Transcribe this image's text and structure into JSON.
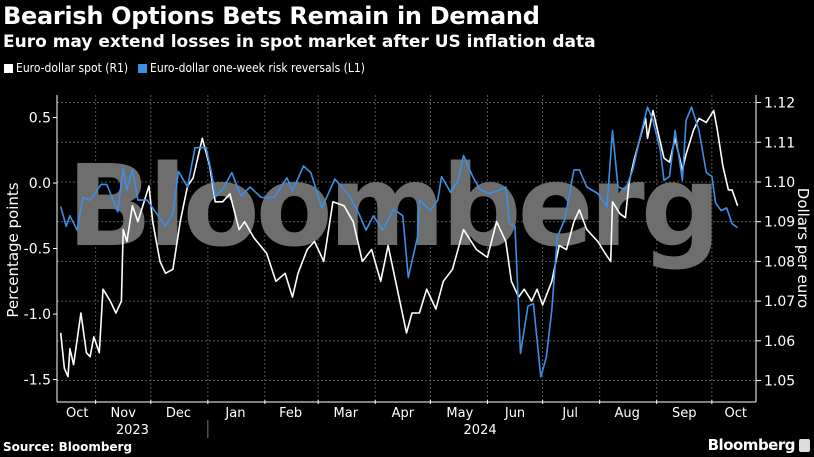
{
  "header": {
    "title": "Bearish Options Bets Remain in Demand",
    "subtitle": "Euro may extend losses in spot market after US inflation data"
  },
  "footer": {
    "source": "Source: Bloomberg",
    "logo": "Bloomberg"
  },
  "watermark": "Bloomberg",
  "colors": {
    "spot": "#ffffff",
    "rr": "#3d8fe6",
    "grid": "#555555",
    "watermark": "#6e6e6e"
  },
  "chart_data": {
    "type": "line",
    "title": "Bearish Options Bets Remain in Demand",
    "x_unit": "days since 2023-10-01",
    "xlim": [
      10,
      390
    ],
    "left_axis": {
      "label": "Percentage points",
      "ylim": [
        -1.656,
        0.672
      ],
      "ticks": [
        0.5,
        0.0,
        -0.5,
        -1.0,
        -1.5
      ],
      "tick_labels": [
        "0.5",
        "0.0",
        "-0.5",
        "-1.0",
        "-1.5"
      ]
    },
    "right_axis": {
      "label": "Dollars per euro",
      "ylim": [
        1.0451,
        1.1219
      ],
      "ticks": [
        1.12,
        1.11,
        1.1,
        1.09,
        1.08,
        1.07,
        1.06,
        1.05
      ],
      "tick_labels": [
        "1.12",
        "1.11",
        "1.10",
        "1.09",
        "1.08",
        "1.07",
        "1.06",
        "1.05"
      ]
    },
    "month_ticks": [
      0,
      31,
      61,
      92,
      123,
      152,
      183,
      213,
      244,
      274,
      305,
      336,
      366
    ],
    "months": [
      {
        "label": "Oct",
        "day": 21
      },
      {
        "label": "Nov",
        "day": 46
      },
      {
        "label": "Dec",
        "day": 76
      },
      {
        "label": "Jan",
        "day": 107
      },
      {
        "label": "Feb",
        "day": 137
      },
      {
        "label": "Mar",
        "day": 167
      },
      {
        "label": "Apr",
        "day": 198
      },
      {
        "label": "May",
        "day": 229
      },
      {
        "label": "Jun",
        "day": 259
      },
      {
        "label": "Jul",
        "day": 289
      },
      {
        "label": "Aug",
        "day": 320
      },
      {
        "label": "Sep",
        "day": 351
      },
      {
        "label": "Oct",
        "day": 379
      }
    ],
    "years": [
      {
        "label": "2023",
        "day": 51
      },
      {
        "label": "2024",
        "day": 240
      }
    ],
    "year_divider_day": 92,
    "grid": true,
    "legend_position": "top-left",
    "series": [
      {
        "name": "Euro-dollar spot (R1)",
        "axis": "right",
        "color": "#ffffff",
        "x": [
          12,
          14,
          16,
          17,
          19,
          23,
          26,
          28,
          30,
          33,
          35,
          39,
          42,
          45,
          46,
          48,
          51,
          54,
          60,
          62,
          66,
          69,
          73,
          77,
          81,
          84,
          89,
          93,
          96,
          100,
          104,
          109,
          112,
          117,
          124,
          129,
          134,
          138,
          141,
          146,
          150,
          155,
          160,
          166,
          171,
          176,
          181,
          186,
          190,
          195,
          200,
          203,
          207,
          211,
          216,
          220,
          225,
          231,
          238,
          244,
          249,
          254,
          257,
          261,
          264,
          268,
          271,
          274,
          279,
          283,
          287,
          291,
          294,
          298,
          304,
          308,
          311,
          312,
          316,
          319,
          321,
          324,
          327,
          330,
          331,
          334,
          337,
          340,
          343,
          346,
          350,
          352,
          356,
          359,
          363,
          367,
          369,
          372,
          375,
          377,
          380
        ],
        "y": [
          1.062,
          1.053,
          1.051,
          1.058,
          1.054,
          1.067,
          1.057,
          1.056,
          1.061,
          1.057,
          1.073,
          1.07,
          1.067,
          1.07,
          1.088,
          1.085,
          1.094,
          1.09,
          1.099,
          1.09,
          1.08,
          1.077,
          1.078,
          1.09,
          1.099,
          1.101,
          1.111,
          1.104,
          1.095,
          1.095,
          1.097,
          1.088,
          1.09,
          1.086,
          1.082,
          1.075,
          1.077,
          1.071,
          1.077,
          1.083,
          1.085,
          1.08,
          1.095,
          1.094,
          1.09,
          1.08,
          1.083,
          1.075,
          1.084,
          1.073,
          1.062,
          1.067,
          1.067,
          1.073,
          1.068,
          1.075,
          1.078,
          1.088,
          1.083,
          1.081,
          1.09,
          1.085,
          1.075,
          1.071,
          1.073,
          1.07,
          1.073,
          1.069,
          1.075,
          1.084,
          1.083,
          1.09,
          1.093,
          1.088,
          1.085,
          1.082,
          1.08,
          1.095,
          1.092,
          1.091,
          1.1,
          1.106,
          1.111,
          1.116,
          1.111,
          1.118,
          1.112,
          1.106,
          1.105,
          1.111,
          1.103,
          1.107,
          1.113,
          1.116,
          1.115,
          1.118,
          1.113,
          1.104,
          1.098,
          1.098,
          1.094
        ]
      },
      {
        "name": "Euro-dollar one-week risk reversals (L1)",
        "axis": "left",
        "color": "#3d8fe6",
        "x": [
          12,
          15,
          17,
          21,
          24,
          28,
          34,
          37,
          40,
          43,
          46,
          48,
          51,
          54,
          59,
          64,
          69,
          73,
          76,
          81,
          85,
          91,
          94,
          96,
          100,
          105,
          110,
          115,
          121,
          128,
          135,
          138,
          144,
          148,
          154,
          161,
          165,
          169,
          174,
          178,
          182,
          187,
          193,
          198,
          201,
          206,
          207,
          213,
          217,
          219,
          224,
          228,
          231,
          236,
          240,
          245,
          251,
          254,
          256,
          259,
          262,
          266,
          269,
          273,
          276,
          279,
          282,
          286,
          291,
          294,
          298,
          304,
          309,
          312,
          315,
          319,
          323,
          327,
          331,
          334,
          338,
          340,
          343,
          346,
          350,
          352,
          355,
          359,
          363,
          366,
          368,
          371,
          374,
          377,
          380
        ],
        "y": [
          -0.18,
          -0.33,
          -0.25,
          -0.36,
          -0.11,
          -0.13,
          -0.01,
          -0.01,
          -0.11,
          -0.22,
          0.11,
          -0.05,
          0.1,
          -0.13,
          -0.13,
          -0.23,
          -0.33,
          -0.23,
          0.09,
          -0.03,
          0.27,
          0.27,
          0.08,
          -0.1,
          -0.05,
          0.08,
          -0.1,
          -0.03,
          -0.11,
          -0.11,
          0.04,
          -0.06,
          0.13,
          0.08,
          -0.19,
          0.03,
          -0.03,
          -0.1,
          -0.23,
          -0.36,
          -0.25,
          -0.36,
          -0.2,
          -0.25,
          -0.72,
          -0.41,
          -0.13,
          -0.21,
          -0.13,
          0.05,
          -0.07,
          0.02,
          0.21,
          0.05,
          -0.05,
          -0.08,
          -0.05,
          -0.03,
          -0.31,
          -0.33,
          -1.3,
          -0.94,
          -0.92,
          -1.48,
          -1.33,
          -0.97,
          -0.41,
          -0.28,
          0.1,
          0.1,
          -0.03,
          -0.08,
          -0.18,
          0.4,
          -0.03,
          -0.05,
          0.1,
          0.35,
          0.58,
          0.48,
          0.25,
          0.02,
          0.05,
          0.4,
          0.02,
          0.48,
          0.58,
          0.4,
          0.08,
          0.05,
          -0.15,
          -0.21,
          -0.19,
          -0.31,
          -0.34
        ]
      }
    ]
  }
}
